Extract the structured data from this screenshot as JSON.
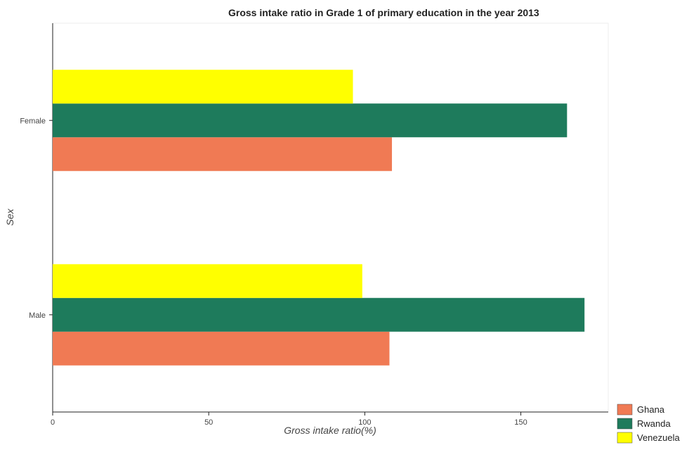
{
  "chart_data": {
    "type": "bar",
    "orientation": "horizontal",
    "title": "Gross intake ratio in Grade 1 of primary education in the year 2013",
    "xlabel": "Gross intake ratio(%)",
    "ylabel": "Sex",
    "categories": [
      "Female",
      "Male"
    ],
    "series": [
      {
        "name": "Ghana",
        "color": "#f07a54",
        "values": [
          108.7,
          107.9
        ]
      },
      {
        "name": "Rwanda",
        "color": "#1e7b5c",
        "values": [
          164.8,
          170.4
        ]
      },
      {
        "name": "Venezuela",
        "color": "#ffff00",
        "values": [
          96.2,
          99.2
        ]
      }
    ],
    "xlim": [
      0,
      178
    ],
    "xticks": [
      0,
      50,
      100,
      150
    ],
    "grid": false,
    "legend_position": "bottom-right"
  }
}
